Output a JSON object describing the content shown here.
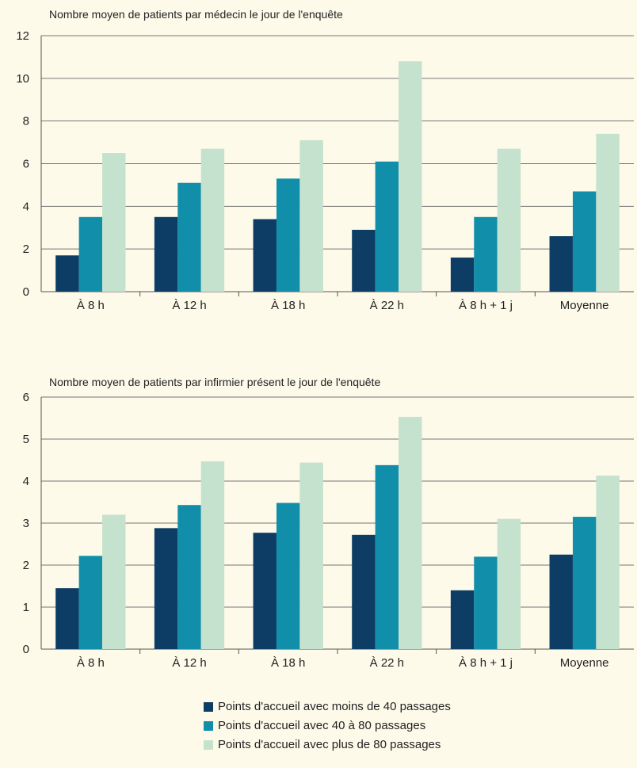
{
  "colors": {
    "background": "#fdfaea",
    "series": [
      "#0d3d64",
      "#118ea9",
      "#c5e2cf"
    ],
    "grid": "#777777",
    "axis": "#555555"
  },
  "legend": [
    "Points d'accueil avec moins de 40 passages",
    "Points d'accueil avec 40 à 80 passages",
    "Points d'accueil avec plus de 80 passages"
  ],
  "chart_data": [
    {
      "type": "bar",
      "title": "Nombre moyen de patients par médecin le jour de l'enquête",
      "categories": [
        "À 8 h",
        "À 12 h",
        "À 18 h",
        "À 22 h",
        "À 8 h + 1 j",
        "Moyenne"
      ],
      "ylim": [
        0,
        12
      ],
      "yticks": [
        0,
        2,
        4,
        6,
        8,
        10,
        12
      ],
      "grid": true,
      "legend_position": "bottom",
      "series": [
        {
          "name": "Points d'accueil avec moins de 40 passages",
          "values": [
            1.7,
            3.5,
            3.4,
            2.9,
            1.6,
            2.6
          ]
        },
        {
          "name": "Points d'accueil avec 40 à 80 passages",
          "values": [
            3.5,
            5.1,
            5.3,
            6.1,
            3.5,
            4.7
          ]
        },
        {
          "name": "Points d'accueil avec plus de 80 passages",
          "values": [
            6.5,
            6.7,
            7.1,
            10.8,
            6.7,
            7.4
          ]
        }
      ]
    },
    {
      "type": "bar",
      "title": "Nombre moyen de patients par infirmier présent le jour de l'enquête",
      "categories": [
        "À 8 h",
        "À 12 h",
        "À 18 h",
        "À 22 h",
        "À 8 h + 1 j",
        "Moyenne"
      ],
      "ylim": [
        0,
        6
      ],
      "yticks": [
        0,
        1,
        2,
        3,
        4,
        5,
        6
      ],
      "grid": true,
      "legend_position": "bottom",
      "series": [
        {
          "name": "Points d'accueil avec moins de 40 passages",
          "values": [
            1.45,
            2.88,
            2.77,
            2.72,
            1.4,
            2.25
          ]
        },
        {
          "name": "Points d'accueil avec 40 à 80 passages",
          "values": [
            2.22,
            3.43,
            3.48,
            4.38,
            2.2,
            3.15
          ]
        },
        {
          "name": "Points d'accueil avec plus de 80 passages",
          "values": [
            3.2,
            4.47,
            4.44,
            5.53,
            3.1,
            4.13
          ]
        }
      ]
    }
  ]
}
